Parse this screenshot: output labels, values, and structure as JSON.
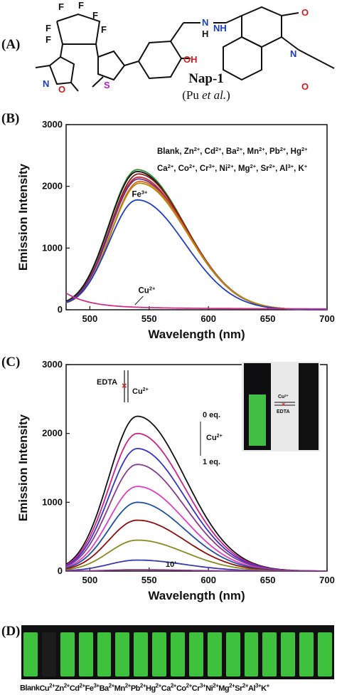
{
  "panels": {
    "a": {
      "label": "(A)",
      "compound": "Nap-1",
      "reference_prefix": "(Pu ",
      "reference_italic": "et al.",
      "reference_suffix": ")",
      "atoms": {
        "F": "F",
        "N": "N",
        "NH": "NH",
        "H": "H",
        "OH": "OH",
        "O": "O",
        "S": "S"
      }
    },
    "b": {
      "label": "(B)"
    },
    "c": {
      "label": "(C)"
    },
    "d": {
      "label": "(D)"
    }
  },
  "chart_data": [
    {
      "type": "line",
      "panel": "B",
      "xlabel": "Wavelength (nm)",
      "ylabel": "Emission Intensity",
      "xlim": [
        480,
        700
      ],
      "ylim": [
        0,
        3000
      ],
      "xticks": [
        500,
        550,
        600,
        650,
        700
      ],
      "yticks": [
        0,
        1000,
        2000,
        3000
      ],
      "legend_lines": [
        [
          "Blank, Zn",
          "2+",
          ", Cd",
          "2+",
          ", Ba",
          "2+",
          ", Mn",
          "2+",
          ", Pb",
          "2+",
          ", Hg",
          "2+"
        ],
        [
          "Ca",
          "2+",
          ", Co",
          "2+",
          ", Cr",
          "3+",
          ", Ni",
          "2+",
          ", Mg",
          "2+",
          ", Sr",
          "2+",
          ", Al",
          "3+",
          ", K",
          "+"
        ]
      ],
      "annotations": [
        {
          "base": "Fe",
          "sup": "3+",
          "x": 542,
          "y": 1830
        },
        {
          "base": "Cu",
          "sup": "2+",
          "x": 548,
          "y": 270
        }
      ],
      "series": [
        {
          "color": "#2e8b2e",
          "peak": 2270,
          "center": 540,
          "baseline": 0
        },
        {
          "color": "#111111",
          "peak": 2240,
          "center": 540,
          "baseline": 0
        },
        {
          "color": "#8b1a1a",
          "peak": 2200,
          "center": 541,
          "baseline": 0
        },
        {
          "color": "#c03030",
          "peak": 2150,
          "center": 541,
          "baseline": 0
        },
        {
          "color": "#6a2a8a",
          "peak": 2120,
          "center": 541,
          "baseline": 0
        },
        {
          "color": "#d07020",
          "peak": 2080,
          "center": 542,
          "baseline": 0
        },
        {
          "color": "#b8860b",
          "peak": 2050,
          "center": 542,
          "baseline": 0
        },
        {
          "color": "#2040c0",
          "peak": 1780,
          "center": 540,
          "baseline": 0
        },
        {
          "color": "#d0308a",
          "peak": 0,
          "center": 540,
          "baseline": 1,
          "decay": [
            230,
            40
          ]
        }
      ]
    },
    {
      "type": "line",
      "panel": "C",
      "xlabel": "Wavelength (nm)",
      "ylabel": "Emission Intensity",
      "xlim": [
        480,
        700
      ],
      "ylim": [
        0,
        3000
      ],
      "xticks": [
        500,
        550,
        600,
        650,
        700
      ],
      "yticks": [
        0,
        1000,
        2000,
        3000
      ],
      "annotations": {
        "edta": "EDTA",
        "cu": {
          "base": "Cu",
          "sup": "2+"
        },
        "eq0": "0 eq.",
        "eq_cu": {
          "base": "Cu",
          "sup": "2+"
        },
        "eq1": "1 eq.",
        "ten": "10'",
        "inset_cu": {
          "base": "Cu",
          "sup": "2+"
        },
        "inset_edta": "EDTA"
      },
      "series": [
        {
          "color": "#111111",
          "peak": 2250
        },
        {
          "color": "#d0208a",
          "peak": 2000
        },
        {
          "color": "#3535c8",
          "peak": 1780
        },
        {
          "color": "#8a3a8a",
          "peak": 1550
        },
        {
          "color": "#e040c0",
          "peak": 1230
        },
        {
          "color": "#2050a0",
          "peak": 1000
        },
        {
          "color": "#8b1010",
          "peak": 740
        },
        {
          "color": "#8a8a20",
          "peak": 450
        },
        {
          "color": "#3a3ab0",
          "peak": 160
        },
        {
          "color": "#8a3a8a",
          "peak": 20
        }
      ]
    }
  ],
  "vials": {
    "labels": [
      {
        "base": "Blank",
        "sup": ""
      },
      {
        "base": "Cu",
        "sup": "2+"
      },
      {
        "base": "Zn",
        "sup": "2+"
      },
      {
        "base": "Cd",
        "sup": "2+"
      },
      {
        "base": "Fe",
        "sup": "3+"
      },
      {
        "base": "Ba",
        "sup": "2+"
      },
      {
        "base": "Mn",
        "sup": "2+"
      },
      {
        "base": "Pb",
        "sup": "2+"
      },
      {
        "base": "Hg",
        "sup": "2+"
      },
      {
        "base": "Ca",
        "sup": "2+"
      },
      {
        "base": "Co",
        "sup": "2+"
      },
      {
        "base": "Cr",
        "sup": "3+"
      },
      {
        "base": "Ni",
        "sup": "2+"
      },
      {
        "base": "Mg",
        "sup": "2+"
      },
      {
        "base": "Sr",
        "sup": "2+"
      },
      {
        "base": "Al",
        "sup": "3+"
      },
      {
        "base": "K",
        "sup": "+"
      }
    ],
    "dark_indices": [
      1
    ],
    "glow_color": "#3ec23e"
  }
}
